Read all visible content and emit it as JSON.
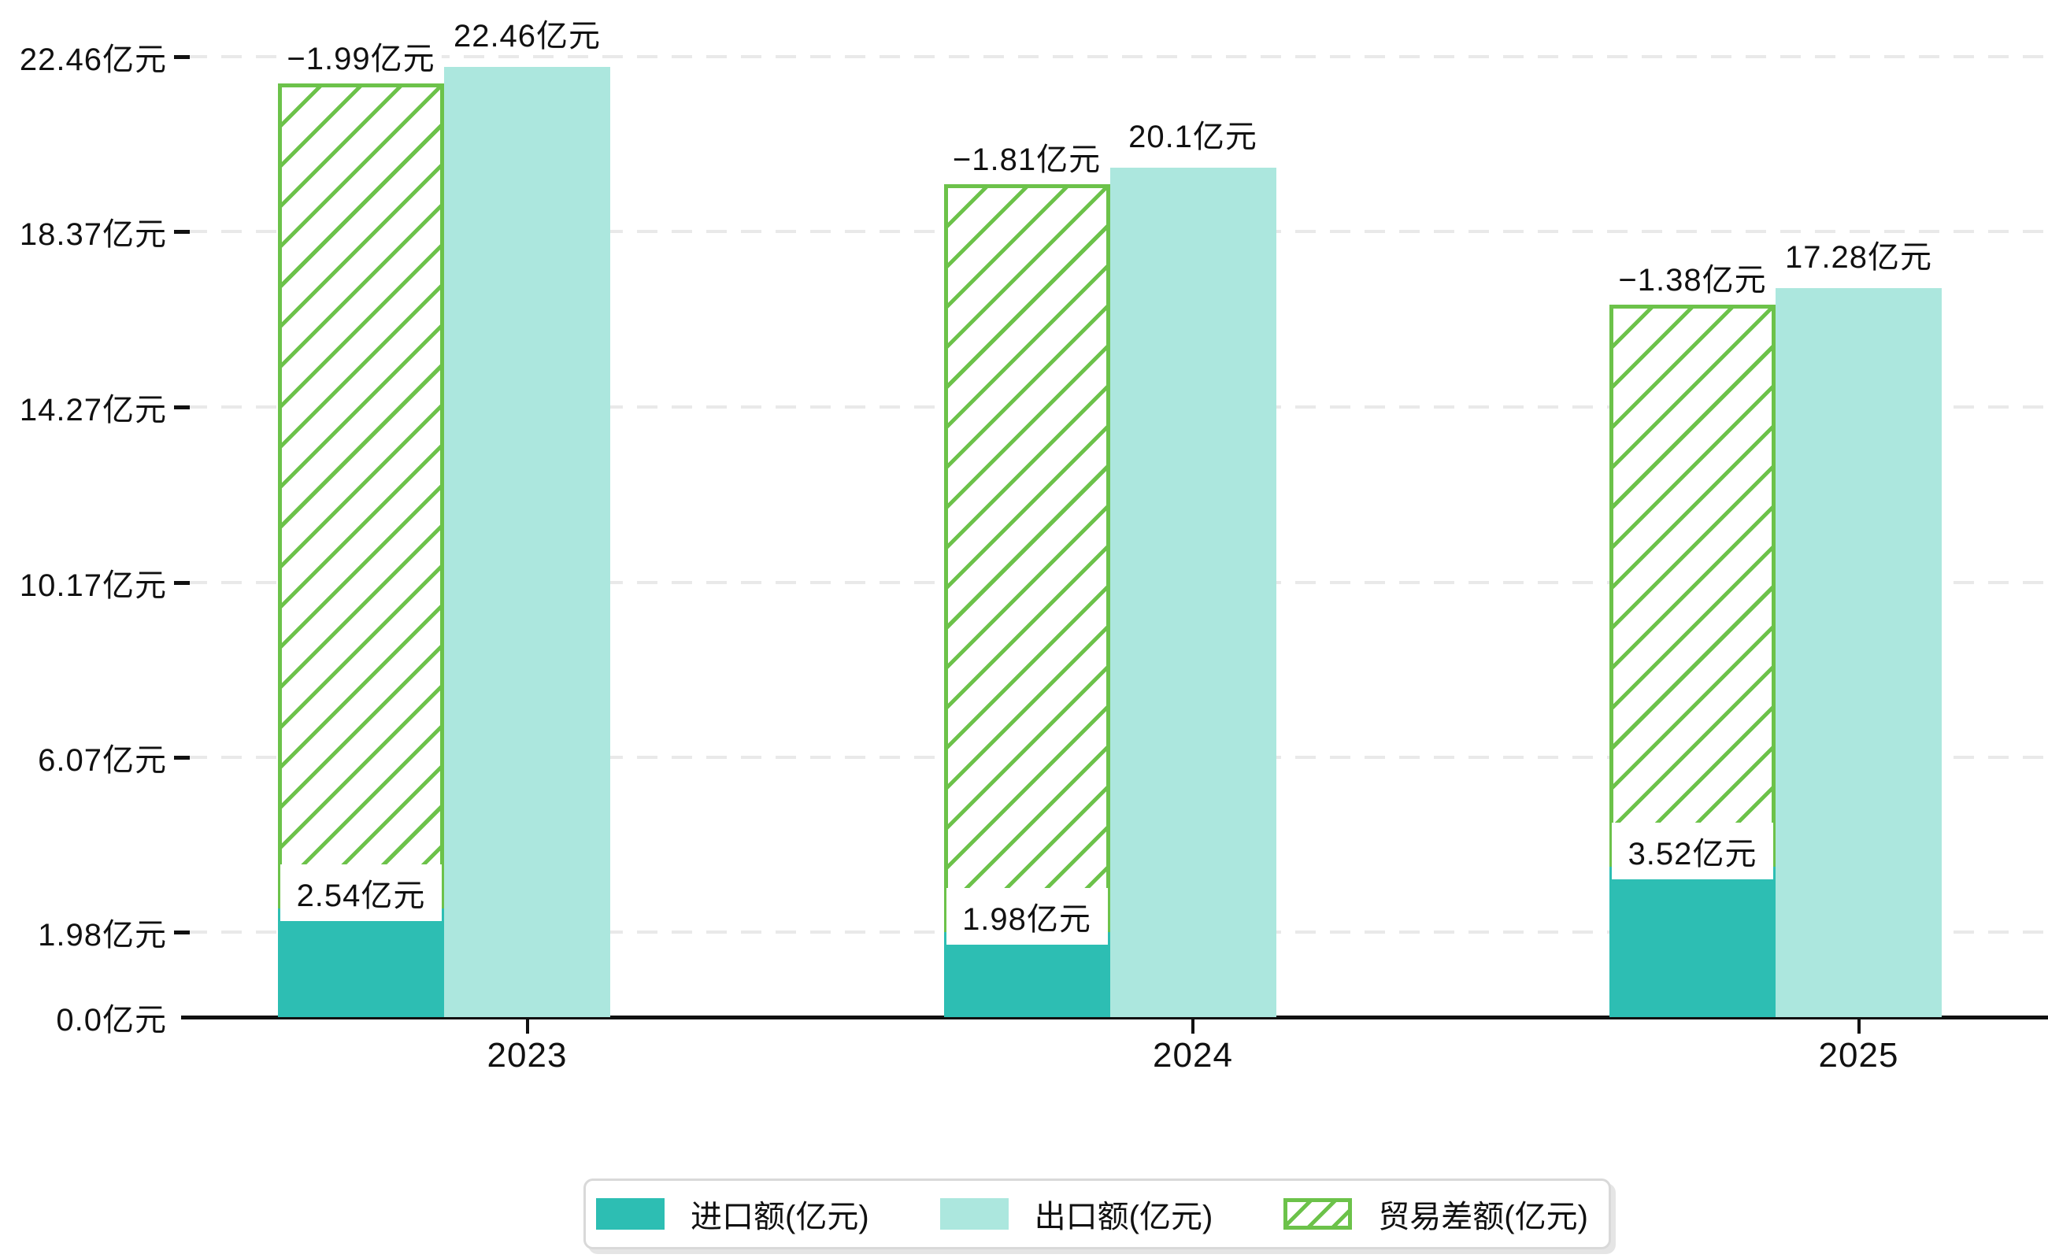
{
  "chart_data": {
    "type": "bar",
    "title": "",
    "categories": [
      "2023",
      "2024",
      "2025"
    ],
    "series": [
      {
        "name": "进口额(亿元)",
        "role": "import",
        "values": [
          2.54,
          1.98,
          3.52
        ],
        "labels": [
          "2.54亿元",
          "1.98亿元",
          "3.52亿元"
        ],
        "color": "#2dbeb3"
      },
      {
        "name": "出口额(亿元)",
        "role": "export",
        "values": [
          22.46,
          20.1,
          17.28
        ],
        "labels": [
          "22.46亿元",
          "20.1亿元",
          "17.28亿元"
        ],
        "color": "#ace7de"
      },
      {
        "name": "贸易差额(亿元)",
        "role": "trade-difference",
        "values": [
          -1.99,
          -1.81,
          -1.38
        ],
        "labels": [
          "−1.99亿元",
          "−1.81亿元",
          "−1.38亿元"
        ],
        "color": "#6cc24a",
        "style": "hatched-floating-bar-from-import-top-to-export-top"
      }
    ],
    "y_axis": {
      "unit": "亿元",
      "range": [
        0,
        22.46
      ],
      "grid": "dashed",
      "ticks": [
        {
          "value": 0,
          "label": "0.0亿元"
        },
        {
          "value": 1.98,
          "label": "1.98亿元"
        },
        {
          "value": 6.07,
          "label": "6.07亿元"
        },
        {
          "value": 10.17,
          "label": "10.17亿元"
        },
        {
          "value": 14.27,
          "label": "14.27亿元"
        },
        {
          "value": 18.37,
          "label": "18.37亿元"
        },
        {
          "value": 22.46,
          "label": "22.46亿元"
        }
      ]
    },
    "legend": {
      "position": "bottom",
      "items": [
        "进口额(亿元)",
        "出口额(亿元)",
        "贸易差额(亿元)"
      ]
    }
  },
  "colors": {
    "import_bar": "#2dbeb3",
    "export_bar": "#ace7de",
    "hatch_green": "#6cc24a",
    "axis": "#111111",
    "gridline": "#e9e9e9",
    "legend_border": "#d9d9d9",
    "background": "#ffffff"
  }
}
